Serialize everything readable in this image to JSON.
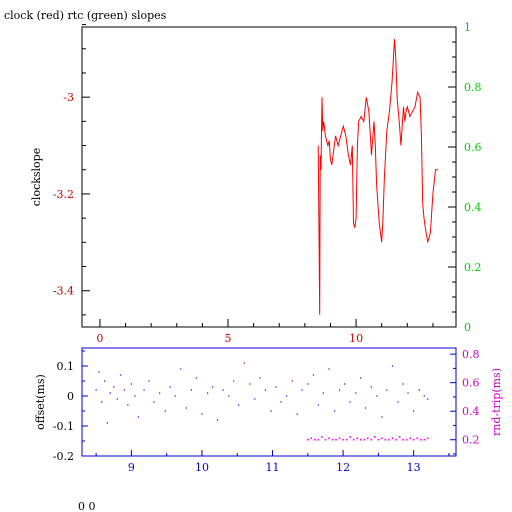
{
  "title": "clock (red) rtc (green) slopes",
  "footer": "0 0",
  "chart_data": [
    {
      "type": "line",
      "ylabel": "clockslope",
      "xlim": [
        -0.7,
        13.9
      ],
      "ylim_left": [
        -3.475,
        -2.855
      ],
      "ylim_right": [
        0,
        1
      ],
      "x_ticks": [
        0,
        5,
        10
      ],
      "x_tick_labels": [
        "0",
        "5",
        "10"
      ],
      "y_left_ticks": [
        -3.4,
        -3.2,
        -3
      ],
      "y_left_tick_labels": [
        "-3.4",
        "-3.2",
        "-3"
      ],
      "y_right_ticks": [
        0,
        0.2,
        0.4,
        0.6,
        0.8,
        1
      ],
      "y_right_tick_labels": [
        "0",
        "0.2",
        "0.4",
        "0.6",
        "0.8",
        "1"
      ],
      "colors": {
        "axes": "#000000",
        "left_ticks": "#cc0000",
        "right_ticks": "#00cc00",
        "x_ticks": "#cc0000"
      },
      "series": [
        {
          "color": "#ff0000",
          "x": [
            8.52,
            8.55,
            8.58,
            8.6,
            8.63,
            8.67,
            8.7,
            8.73,
            8.76,
            8.8,
            8.85,
            8.9,
            8.95,
            9.0,
            9.05,
            9.1,
            9.2,
            9.3,
            9.4,
            9.5,
            9.6,
            9.7,
            9.78,
            9.85,
            9.9,
            9.95,
            10.0,
            10.05,
            10.1,
            10.2,
            10.3,
            10.4,
            10.5,
            10.6,
            10.7,
            10.75,
            10.8,
            10.9,
            11.0,
            11.05,
            11.1,
            11.2,
            11.3,
            11.4,
            11.5,
            11.55,
            11.6,
            11.7,
            11.75,
            11.8,
            11.85,
            11.9,
            11.95,
            12.0,
            12.1,
            12.2,
            12.3,
            12.4,
            12.5,
            12.55,
            12.6,
            12.65,
            12.7,
            12.8,
            12.9,
            13.0,
            13.1,
            13.2
          ],
          "y": [
            -3.1,
            -3.28,
            -3.45,
            -3.12,
            -3.15,
            -3.0,
            -3.07,
            -3.05,
            -3.06,
            -3.08,
            -3.09,
            -3.1,
            -3.09,
            -3.13,
            -3.14,
            -3.12,
            -3.08,
            -3.1,
            -3.08,
            -3.06,
            -3.08,
            -3.12,
            -3.14,
            -3.1,
            -3.26,
            -3.27,
            -3.25,
            -3.1,
            -3.05,
            -3.04,
            -3.05,
            -3.0,
            -3.03,
            -3.12,
            -3.05,
            -3.1,
            -3.18,
            -3.26,
            -3.3,
            -3.25,
            -3.17,
            -3.07,
            -3.03,
            -2.97,
            -2.88,
            -2.92,
            -3.0,
            -3.06,
            -3.1,
            -3.06,
            -3.02,
            -3.05,
            -3.03,
            -3.02,
            -3.04,
            -3.03,
            -3.02,
            -2.99,
            -3.0,
            -3.08,
            -3.22,
            -3.25,
            -3.27,
            -3.3,
            -3.28,
            -3.2,
            -3.15,
            -3.15
          ]
        }
      ]
    },
    {
      "type": "scatter",
      "ylabel": "offset(ms)",
      "y2label": "rnd-trip(ms)",
      "xlim": [
        8.3,
        13.6
      ],
      "ylim_left": [
        -0.2,
        0.16
      ],
      "ylim_right": [
        0.086,
        0.843
      ],
      "x_ticks": [
        9,
        10,
        11,
        12,
        13
      ],
      "x_tick_labels": [
        "9",
        "10",
        "11",
        "12",
        "13"
      ],
      "y_left_ticks": [
        -0.2,
        -0.1,
        0,
        0.1
      ],
      "y_left_tick_labels": [
        "-0.2",
        "-0.1",
        "0",
        "0.1"
      ],
      "y_right_ticks": [
        0.2,
        0.4,
        0.6,
        0.8
      ],
      "y_right_tick_labels": [
        "0.2",
        "0.4",
        "0.6",
        "0.8"
      ],
      "colors": {
        "axes": "#0000cc",
        "offset": "#0000ff",
        "rnd_trip": "#ff00ff",
        "right_ticks": "#cc00cc"
      },
      "series": [
        {
          "name": "offset(ms)",
          "color": "#0000ff",
          "x": [
            8.5,
            8.54,
            8.58,
            8.62,
            8.66,
            8.7,
            8.75,
            8.8,
            8.85,
            8.9,
            8.95,
            9.0,
            9.05,
            9.1,
            9.18,
            9.25,
            9.32,
            9.4,
            9.48,
            9.55,
            9.62,
            9.7,
            9.78,
            9.85,
            9.92,
            10.0,
            10.08,
            10.15,
            10.22,
            10.3,
            10.38,
            10.45,
            10.52,
            10.6,
            10.68,
            10.75,
            10.82,
            10.9,
            10.98,
            11.05,
            11.12,
            11.2,
            11.28,
            11.35,
            11.42,
            11.5,
            11.58,
            11.65,
            11.72,
            11.8,
            11.88,
            11.95,
            12.02,
            12.1,
            12.18,
            12.25,
            12.32,
            12.4,
            12.48,
            12.55,
            12.62,
            12.7,
            12.78,
            12.85,
            12.92,
            13.0,
            13.08,
            13.15,
            13.2
          ],
          "y": [
            0.02,
            0.08,
            -0.02,
            0.05,
            -0.09,
            0.01,
            0.03,
            -0.01,
            0.07,
            0.02,
            -0.03,
            0.04,
            0.0,
            -0.07,
            0.02,
            0.05,
            -0.02,
            0.01,
            -0.05,
            0.03,
            0.0,
            0.09,
            -0.04,
            0.02,
            0.06,
            -0.06,
            0.01,
            0.03,
            -0.08,
            0.02,
            0.0,
            0.05,
            -0.03,
            0.11,
            0.04,
            -0.01,
            0.06,
            0.02,
            -0.05,
            0.03,
            -0.02,
            0.0,
            0.05,
            -0.06,
            0.02,
            0.04,
            0.07,
            -0.03,
            0.01,
            0.09,
            -0.05,
            0.02,
            0.04,
            -0.02,
            0.01,
            0.06,
            -0.04,
            0.03,
            0.0,
            -0.07,
            0.02,
            0.1,
            -0.02,
            0.04,
            0.01,
            -0.05,
            0.02,
            0.0,
            -0.01
          ]
        },
        {
          "name": "rnd-trip(ms)",
          "color": "#ff00ff",
          "x": [
            11.5,
            11.55,
            11.6,
            11.65,
            11.7,
            11.75,
            11.8,
            11.85,
            11.9,
            11.95,
            12.0,
            12.05,
            12.1,
            12.15,
            12.2,
            12.25,
            12.3,
            12.35,
            12.4,
            12.45,
            12.5,
            12.55,
            12.6,
            12.65,
            12.7,
            12.75,
            12.8,
            12.85,
            12.9,
            12.95,
            13.0,
            13.05,
            13.1,
            13.15,
            13.2
          ],
          "y": [
            0.2,
            0.21,
            0.2,
            0.2,
            0.22,
            0.2,
            0.21,
            0.2,
            0.2,
            0.21,
            0.2,
            0.2,
            0.22,
            0.2,
            0.21,
            0.2,
            0.2,
            0.21,
            0.2,
            0.22,
            0.2,
            0.21,
            0.2,
            0.2,
            0.21,
            0.2,
            0.22,
            0.2,
            0.2,
            0.21,
            0.2,
            0.21,
            0.2,
            0.2,
            0.21
          ]
        }
      ]
    }
  ]
}
